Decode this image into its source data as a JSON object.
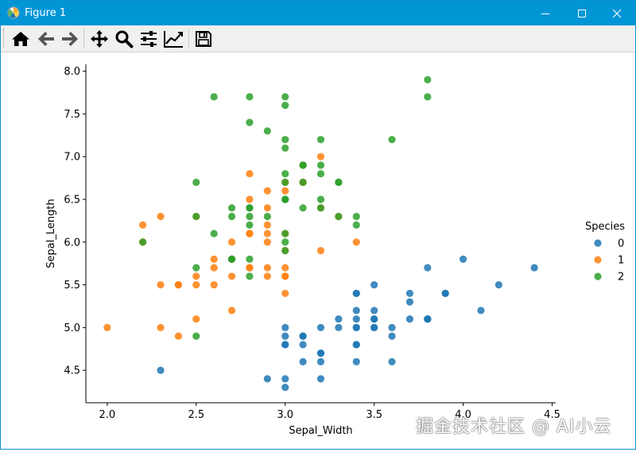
{
  "window": {
    "title": "Figure 1",
    "controls": [
      "minimize",
      "maximize",
      "close"
    ]
  },
  "toolbar": {
    "buttons": [
      {
        "name": "home",
        "icon": "home-icon"
      },
      {
        "name": "back",
        "icon": "arrow-left-icon"
      },
      {
        "name": "forward",
        "icon": "arrow-right-icon"
      },
      {
        "name": "pan",
        "icon": "move-icon"
      },
      {
        "name": "zoom",
        "icon": "magnifier-icon"
      },
      {
        "name": "subplots",
        "icon": "sliders-icon"
      },
      {
        "name": "customize",
        "icon": "line-chart-icon"
      },
      {
        "name": "save",
        "icon": "floppy-disk-icon"
      }
    ]
  },
  "watermark": "掘金技术社区 @ AI小云",
  "chart_data": {
    "type": "scatter",
    "xlabel": "Sepal_Width",
    "ylabel": "Sepal_Length",
    "xlim": [
      1.88,
      4.52
    ],
    "ylim": [
      4.12,
      8.08
    ],
    "xticks": [
      "2.0",
      "2.5",
      "3.0",
      "3.5",
      "4.0",
      "4.5"
    ],
    "yticks": [
      "4.5",
      "5.0",
      "5.5",
      "6.0",
      "6.5",
      "7.0",
      "7.5",
      "8.0"
    ],
    "legend": {
      "title": "Species",
      "position": "right",
      "entries": [
        "0",
        "1",
        "2"
      ]
    },
    "colors": [
      "#1f77b4",
      "#ff7f0e",
      "#2ca02c"
    ],
    "series": [
      {
        "name": "0",
        "points": [
          [
            3.5,
            5.1
          ],
          [
            3.0,
            4.9
          ],
          [
            3.2,
            4.7
          ],
          [
            3.1,
            4.6
          ],
          [
            3.6,
            5.0
          ],
          [
            3.9,
            5.4
          ],
          [
            3.4,
            4.6
          ],
          [
            3.4,
            5.0
          ],
          [
            2.9,
            4.4
          ],
          [
            3.1,
            4.9
          ],
          [
            3.7,
            5.4
          ],
          [
            3.4,
            4.8
          ],
          [
            3.0,
            4.8
          ],
          [
            3.0,
            4.3
          ],
          [
            4.0,
            5.8
          ],
          [
            4.4,
            5.7
          ],
          [
            3.9,
            5.4
          ],
          [
            3.5,
            5.1
          ],
          [
            3.8,
            5.7
          ],
          [
            3.8,
            5.1
          ],
          [
            3.4,
            5.4
          ],
          [
            3.7,
            5.1
          ],
          [
            3.6,
            4.6
          ],
          [
            3.3,
            5.1
          ],
          [
            3.4,
            4.8
          ],
          [
            3.0,
            5.0
          ],
          [
            3.4,
            5.0
          ],
          [
            3.5,
            5.2
          ],
          [
            3.4,
            5.2
          ],
          [
            3.2,
            4.7
          ],
          [
            3.1,
            4.8
          ],
          [
            3.4,
            5.4
          ],
          [
            4.1,
            5.2
          ],
          [
            4.2,
            5.5
          ],
          [
            3.1,
            4.9
          ],
          [
            3.2,
            5.0
          ],
          [
            3.5,
            5.5
          ],
          [
            3.6,
            4.9
          ],
          [
            3.0,
            4.4
          ],
          [
            3.4,
            5.1
          ],
          [
            3.5,
            5.0
          ],
          [
            2.3,
            4.5
          ],
          [
            3.2,
            4.4
          ],
          [
            3.5,
            5.0
          ],
          [
            3.8,
            5.1
          ],
          [
            3.0,
            4.8
          ],
          [
            3.8,
            5.1
          ],
          [
            3.2,
            4.6
          ],
          [
            3.7,
            5.3
          ],
          [
            3.3,
            5.0
          ]
        ]
      },
      {
        "name": "1",
        "points": [
          [
            3.2,
            7.0
          ],
          [
            3.2,
            6.4
          ],
          [
            3.1,
            6.9
          ],
          [
            2.3,
            5.5
          ],
          [
            2.8,
            6.5
          ],
          [
            2.8,
            5.7
          ],
          [
            3.3,
            6.3
          ],
          [
            2.4,
            4.9
          ],
          [
            2.9,
            6.6
          ],
          [
            2.7,
            5.2
          ],
          [
            2.0,
            5.0
          ],
          [
            3.0,
            5.9
          ],
          [
            2.2,
            6.0
          ],
          [
            2.9,
            6.1
          ],
          [
            2.9,
            5.6
          ],
          [
            3.1,
            6.7
          ],
          [
            3.0,
            5.6
          ],
          [
            2.7,
            5.8
          ],
          [
            2.2,
            6.2
          ],
          [
            2.5,
            5.6
          ],
          [
            3.2,
            5.9
          ],
          [
            2.8,
            6.1
          ],
          [
            2.5,
            6.3
          ],
          [
            2.8,
            6.1
          ],
          [
            2.9,
            6.4
          ],
          [
            3.0,
            6.6
          ],
          [
            2.8,
            6.8
          ],
          [
            3.0,
            6.7
          ],
          [
            2.9,
            6.0
          ],
          [
            2.6,
            5.7
          ],
          [
            2.4,
            5.5
          ],
          [
            2.4,
            5.5
          ],
          [
            2.7,
            5.8
          ],
          [
            2.7,
            6.0
          ],
          [
            3.0,
            5.4
          ],
          [
            3.4,
            6.0
          ],
          [
            3.1,
            6.7
          ],
          [
            2.3,
            6.3
          ],
          [
            3.0,
            5.6
          ],
          [
            2.5,
            5.5
          ],
          [
            2.6,
            5.5
          ],
          [
            3.0,
            6.1
          ],
          [
            2.6,
            5.8
          ],
          [
            2.3,
            5.0
          ],
          [
            2.7,
            5.6
          ],
          [
            3.0,
            5.7
          ],
          [
            2.9,
            5.7
          ],
          [
            2.9,
            6.2
          ],
          [
            2.5,
            5.1
          ],
          [
            2.8,
            5.7
          ]
        ]
      },
      {
        "name": "2",
        "points": [
          [
            3.3,
            6.3
          ],
          [
            2.7,
            5.8
          ],
          [
            3.0,
            7.1
          ],
          [
            2.9,
            6.3
          ],
          [
            3.0,
            6.5
          ],
          [
            3.0,
            7.6
          ],
          [
            2.5,
            4.9
          ],
          [
            2.9,
            7.3
          ],
          [
            2.5,
            6.7
          ],
          [
            3.6,
            7.2
          ],
          [
            3.2,
            6.5
          ],
          [
            2.7,
            6.4
          ],
          [
            3.0,
            6.8
          ],
          [
            2.5,
            5.7
          ],
          [
            2.8,
            5.8
          ],
          [
            3.2,
            6.4
          ],
          [
            3.0,
            6.5
          ],
          [
            3.8,
            7.7
          ],
          [
            2.6,
            7.7
          ],
          [
            2.2,
            6.0
          ],
          [
            3.2,
            6.9
          ],
          [
            2.8,
            5.6
          ],
          [
            2.8,
            7.7
          ],
          [
            2.7,
            6.3
          ],
          [
            3.3,
            6.7
          ],
          [
            3.2,
            7.2
          ],
          [
            2.8,
            6.2
          ],
          [
            3.0,
            6.1
          ],
          [
            2.8,
            6.4
          ],
          [
            3.0,
            7.2
          ],
          [
            2.8,
            7.4
          ],
          [
            3.8,
            7.9
          ],
          [
            2.8,
            6.4
          ],
          [
            2.8,
            6.3
          ],
          [
            2.6,
            6.1
          ],
          [
            3.0,
            7.7
          ],
          [
            3.4,
            6.3
          ],
          [
            3.1,
            6.4
          ],
          [
            3.0,
            6.0
          ],
          [
            3.1,
            6.9
          ],
          [
            3.1,
            6.7
          ],
          [
            3.1,
            6.9
          ],
          [
            2.7,
            5.8
          ],
          [
            3.2,
            6.8
          ],
          [
            3.3,
            6.7
          ],
          [
            3.0,
            6.7
          ],
          [
            2.5,
            6.3
          ],
          [
            3.0,
            6.5
          ],
          [
            3.4,
            6.2
          ],
          [
            3.0,
            5.9
          ]
        ]
      }
    ]
  }
}
